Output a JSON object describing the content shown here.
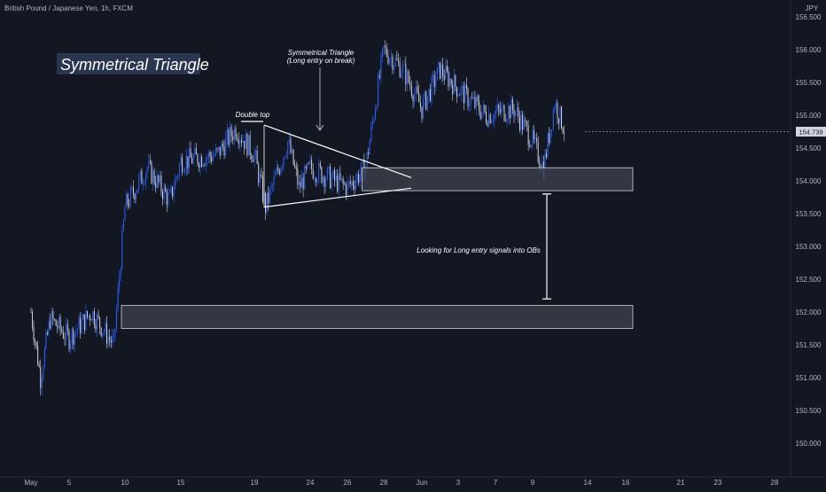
{
  "header": {
    "symbol_title": "British Pound / Japanese Yen, 1h, FXCM",
    "currency": "JPY"
  },
  "colors": {
    "background": "#131722",
    "candle_up": "#2962ff",
    "candle_down": "#d1d4dc",
    "zone_fill": "#3a3d48",
    "zone_stroke": "#d1d4dc",
    "title_box": "#2a3550",
    "price_badge": "#d1d4dc"
  },
  "annotations": {
    "pattern_title": "Symmetrical Triangle",
    "triangle_note_line1": "Symmetrical Triangle",
    "triangle_note_line2": "(Long entry on break)",
    "double_top": "Double top",
    "ob_note": "Looking for Long entry signals into OBs"
  },
  "chart_data": {
    "type": "candlestick",
    "title": "British Pound / Japanese Yen, 1h, FXCM",
    "ylabel": "JPY",
    "ylim": [
      149.8,
      156.8
    ],
    "y_ticks": [
      "156.500",
      "156.000",
      "155.500",
      "155.000",
      "154.500",
      "154.000",
      "153.500",
      "153.000",
      "152.500",
      "152.000",
      "151.500",
      "151.000",
      "150.500",
      "150.000"
    ],
    "x_ticks": [
      "May",
      "5",
      "10",
      "15",
      "19",
      "24",
      "26",
      "28",
      "Jun",
      "3",
      "7",
      "9",
      "14",
      "16",
      "21",
      "23",
      "28"
    ],
    "last_price": "154.739",
    "price_path": [
      {
        "x": "May 1",
        "y": 152.0
      },
      {
        "x": "May 2",
        "y": 151.0
      },
      {
        "x": "May 3",
        "y": 151.9
      },
      {
        "x": "May 5",
        "y": 151.6
      },
      {
        "x": "May 7",
        "y": 152.0
      },
      {
        "x": "May 9",
        "y": 151.5
      },
      {
        "x": "May 10",
        "y": 153.6
      },
      {
        "x": "May 12",
        "y": 154.2
      },
      {
        "x": "May 14",
        "y": 153.7
      },
      {
        "x": "May 15",
        "y": 154.3
      },
      {
        "x": "May 17",
        "y": 154.4
      },
      {
        "x": "May 18",
        "y": 154.8
      },
      {
        "x": "May 19",
        "y": 154.4
      },
      {
        "x": "May 20",
        "y": 153.6
      },
      {
        "x": "May 22",
        "y": 154.6
      },
      {
        "x": "May 23",
        "y": 153.9
      },
      {
        "x": "May 24",
        "y": 154.2
      },
      {
        "x": "May 26",
        "y": 153.9
      },
      {
        "x": "May 27",
        "y": 154.2
      },
      {
        "x": "May 28",
        "y": 156.0
      },
      {
        "x": "May 30",
        "y": 155.7
      },
      {
        "x": "Jun 1",
        "y": 155.1
      },
      {
        "x": "Jun 2",
        "y": 155.7
      },
      {
        "x": "Jun 3",
        "y": 155.4
      },
      {
        "x": "Jun 6",
        "y": 155.0
      },
      {
        "x": "Jun 8",
        "y": 155.1
      },
      {
        "x": "Jun 9",
        "y": 154.6
      },
      {
        "x": "Jun 10",
        "y": 154.2
      },
      {
        "x": "Jun 11",
        "y": 155.2
      },
      {
        "x": "Jun 12",
        "y": 154.74
      }
    ],
    "triangle": {
      "upper": [
        {
          "x": "May 19",
          "y": 154.85
        },
        {
          "x": "May 29",
          "y": 154.05
        }
      ],
      "lower": [
        {
          "x": "May 19",
          "y": 153.6
        },
        {
          "x": "May 29",
          "y": 154.05
        }
      ]
    },
    "zones": [
      {
        "from_x": "May 27",
        "to_x": "Jun 14",
        "y_top": 154.2,
        "y_bottom": 153.85
      },
      {
        "from_x": "May 10",
        "to_x": "Jun 14",
        "y_top": 152.1,
        "y_bottom": 151.75
      }
    ],
    "measure": {
      "x": "Jun 12",
      "y_top": 153.8,
      "y_bottom": 152.2
    }
  }
}
